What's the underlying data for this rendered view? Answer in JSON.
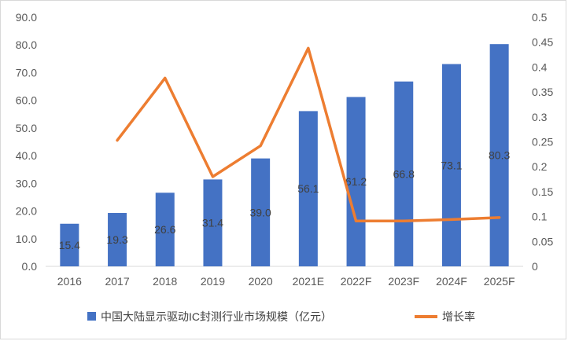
{
  "chart_data": {
    "type": "bar",
    "categories": [
      "2016",
      "2017",
      "2018",
      "2019",
      "2020",
      "2021E",
      "2022F",
      "2023F",
      "2024F",
      "2025F"
    ],
    "series": [
      {
        "name": "中国大陆显示驱动IC封测行业市场规模（亿元）",
        "type": "bar",
        "axis": "left",
        "color": "#4472C4",
        "values": [
          15.4,
          19.3,
          26.6,
          31.4,
          39.0,
          56.1,
          61.2,
          66.8,
          73.1,
          80.3
        ],
        "data_labels": [
          "15.4",
          "19.3",
          "26.6",
          "31.4",
          "39.0",
          "56.1",
          "61.2",
          "66.8",
          "73.1",
          "80.3"
        ]
      },
      {
        "name": "增长率",
        "type": "line",
        "axis": "right",
        "color": "#ED7D31",
        "values": [
          null,
          0.253,
          0.378,
          0.18,
          0.242,
          0.438,
          0.091,
          0.091,
          0.094,
          0.098
        ]
      }
    ],
    "y_left": {
      "ylim": [
        0,
        90
      ],
      "ticks": [
        "0.0",
        "10.0",
        "20.0",
        "30.0",
        "40.0",
        "50.0",
        "60.0",
        "70.0",
        "80.0",
        "90.0"
      ]
    },
    "y_right": {
      "ylim": [
        0,
        0.5
      ],
      "ticks": [
        "0",
        "0.05",
        "0.1",
        "0.15",
        "0.2",
        "0.25",
        "0.3",
        "0.35",
        "0.4",
        "0.45",
        "0.5"
      ]
    },
    "title": "",
    "xlabel": "",
    "ylabel": "",
    "grid": false,
    "legend_position": "bottom"
  }
}
